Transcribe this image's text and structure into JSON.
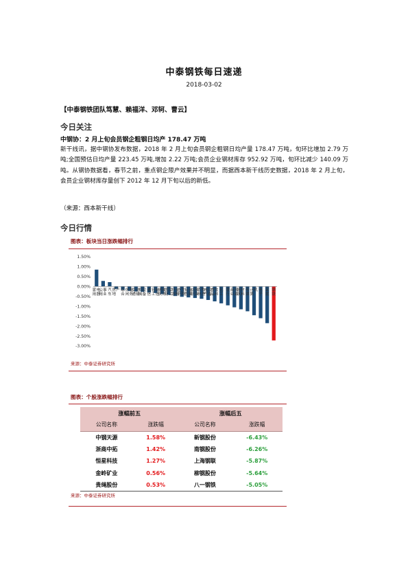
{
  "header": {
    "title": "中泰钢铁每日速递",
    "date": "2018-03-02",
    "team": "【中泰钢铁团队笃慧、赖福洋、邓轲、曹云】"
  },
  "today_focus": {
    "heading": "今日关注",
    "news_title": "中钢协：2 月上旬会员钢企粗钢日均产 178.47 万吨",
    "body": "新干线讯，据中钢协发布数据，2018 年 2 月上旬会员钢企粗钢日均产量 178.47 万吨，旬环比增加 2.79 万吨;全国预估日均产量 223.45 万吨,增加 2.22 万吨;会员企业钢材库存 952.92 万吨，旬环比减少 140.09 万吨。从钢协数据看，春节之前，重点钢企限产效果并不明显，而据西本新干线历史数据，2018 年 2 月上旬，会员企业钢材库存量创下 2012 年 12 月下旬以后的新低。",
    "source": "（来源：西本新干线）"
  },
  "today_market": {
    "heading": "今日行情",
    "figure1_label": "图表：板块当日涨跌幅排行",
    "figure1_source": "来源：中泰证券研究所",
    "figure2_label": "图表：个股涨跌幅排行",
    "figure2_source": "来源：中泰证券研究所"
  },
  "chart_data": {
    "type": "bar",
    "title": "",
    "xlabel": "",
    "ylabel": "",
    "ylim": [
      -3.0,
      1.5
    ],
    "y_ticks": [
      "1.50%",
      "1.00%",
      "0.50%",
      "0.00%",
      "-0.50%",
      "-1.00%",
      "-1.50%",
      "-2.00%",
      "-2.50%",
      "-3.00%"
    ],
    "tick_values": [
      1.5,
      1.0,
      0.5,
      0.0,
      -0.5,
      -1.0,
      -1.5,
      -2.0,
      -2.5,
      -3.0
    ],
    "categories": [
      "家用电器",
      "公用事业",
      "汽车",
      "房地产",
      "综合",
      "休闲服务",
      "交通运输",
      "机械设备",
      "通信",
      "轻工制造",
      "建筑装饰",
      "国防军工",
      "非银金融",
      "医药生物",
      "有色金属",
      "纺织服装",
      "农林牧渔",
      "电气设备",
      "食品饮料",
      "化工",
      "银行",
      "商业贸易",
      "建筑材料",
      "传媒",
      "计算机",
      "电子",
      "采掘",
      "钢铁"
    ],
    "values": [
      0.85,
      0.28,
      0.22,
      -0.12,
      -0.18,
      -0.22,
      -0.25,
      -0.27,
      -0.3,
      -0.33,
      -0.38,
      -0.42,
      -0.48,
      -0.52,
      -0.55,
      -0.58,
      -0.62,
      -0.68,
      -0.75,
      -0.85,
      -0.95,
      -1.05,
      -1.15,
      -1.25,
      -1.45,
      -1.6,
      -1.85,
      -2.72
    ],
    "highlight_color": "#e3191c",
    "bar_color": "#1f4e79"
  },
  "stocks": {
    "group_top": "涨幅前五",
    "group_bottom": "涨幅后五",
    "col_name": "公司名称",
    "col_change": "涨跌幅",
    "top": [
      {
        "name": "中钢天源",
        "change": "1.58%"
      },
      {
        "name": "浙商中拓",
        "change": "1.42%"
      },
      {
        "name": "恒星科技",
        "change": "1.27%"
      },
      {
        "name": "金岭矿业",
        "change": "0.56%"
      },
      {
        "name": "贵绳股份",
        "change": "0.53%"
      }
    ],
    "bottom": [
      {
        "name": "新钢股份",
        "change": "-6.43%"
      },
      {
        "name": "南钢股份",
        "change": "-6.26%"
      },
      {
        "name": "上海钢联",
        "change": "-5.87%"
      },
      {
        "name": "柳钢股份",
        "change": "-5.64%"
      },
      {
        "name": "八一钢铁",
        "change": "-5.05%"
      }
    ]
  }
}
